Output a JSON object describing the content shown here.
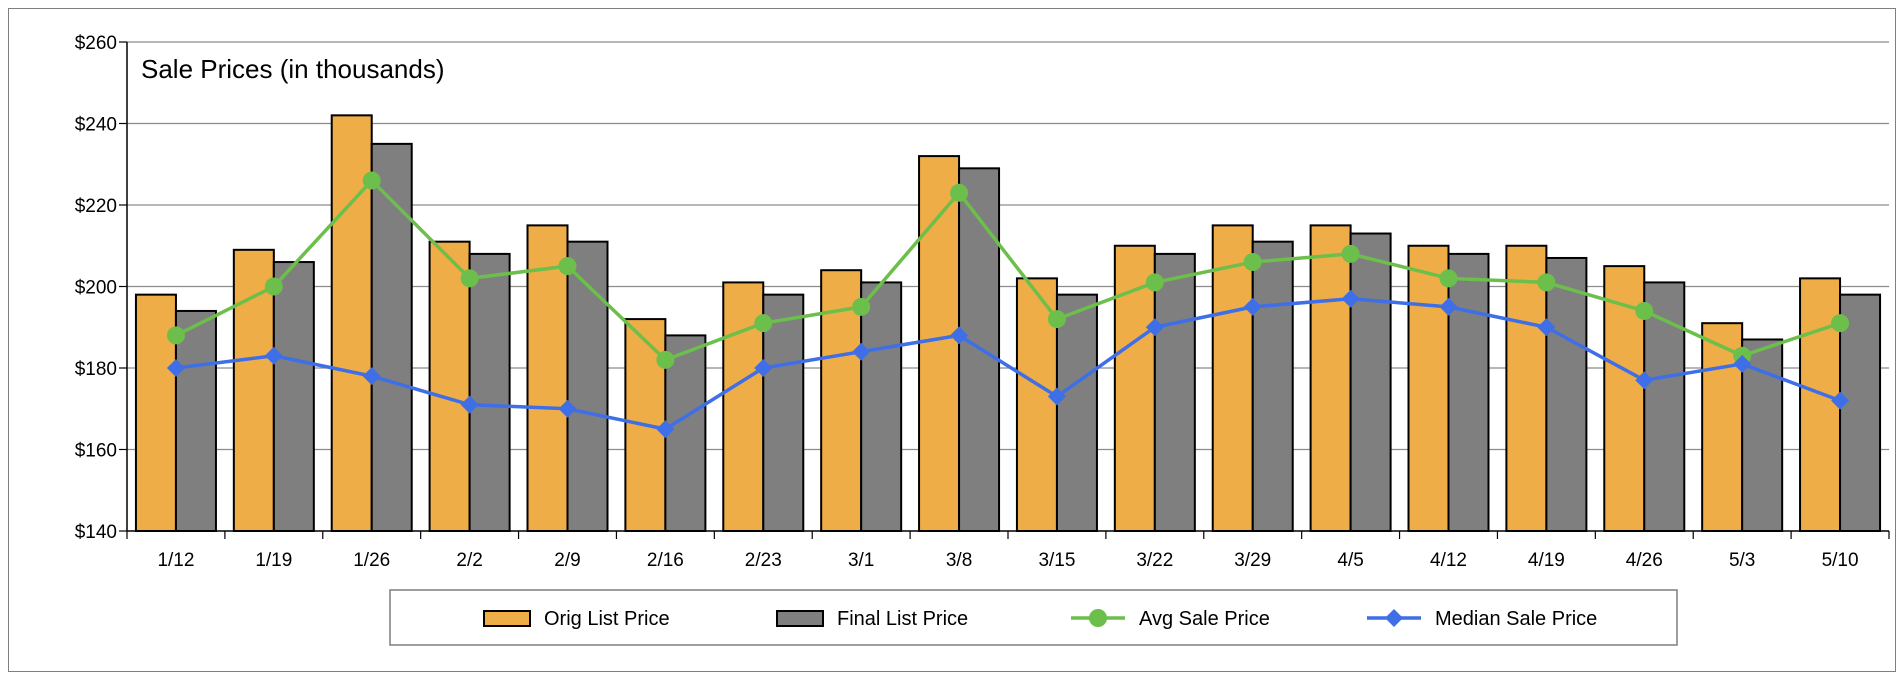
{
  "chart_data": {
    "type": "bar",
    "title": "Sale Prices (in thousands)",
    "xlabel": "",
    "ylabel": "",
    "ylim": [
      140,
      260
    ],
    "yticks": [
      140,
      160,
      180,
      200,
      220,
      240,
      260
    ],
    "ytick_labels": [
      "$140",
      "$160",
      "$180",
      "$200",
      "$220",
      "$240",
      "$260"
    ],
    "grid": true,
    "legend_position": "bottom",
    "categories": [
      "1/12",
      "1/19",
      "1/26",
      "2/2",
      "2/9",
      "2/16",
      "2/23",
      "3/1",
      "3/8",
      "3/15",
      "3/22",
      "3/29",
      "4/5",
      "4/12",
      "4/19",
      "4/26",
      "5/3",
      "5/10"
    ],
    "series": [
      {
        "name": "Orig List Price",
        "kind": "bar",
        "color": "#EFAD47",
        "values": [
          198,
          209,
          242,
          211,
          215,
          192,
          201,
          204,
          232,
          202,
          210,
          215,
          215,
          210,
          210,
          205,
          191,
          202
        ]
      },
      {
        "name": "Final List Price",
        "kind": "bar",
        "color": "#7F7F7F",
        "values": [
          194,
          206,
          235,
          208,
          211,
          188,
          198,
          201,
          229,
          198,
          208,
          211,
          213,
          208,
          207,
          201,
          187,
          198
        ]
      },
      {
        "name": "Avg Sale Price",
        "kind": "line",
        "marker": "circle",
        "color": "#6BBF4A",
        "values": [
          188,
          200,
          226,
          202,
          205,
          182,
          191,
          195,
          223,
          192,
          201,
          206,
          208,
          202,
          201,
          194,
          183,
          191
        ]
      },
      {
        "name": "Median Sale Price",
        "kind": "line",
        "marker": "diamond",
        "color": "#3E6FE6",
        "values": [
          180,
          183,
          178,
          171,
          170,
          165,
          180,
          184,
          188,
          173,
          190,
          195,
          197,
          195,
          190,
          177,
          181,
          172
        ]
      }
    ]
  }
}
